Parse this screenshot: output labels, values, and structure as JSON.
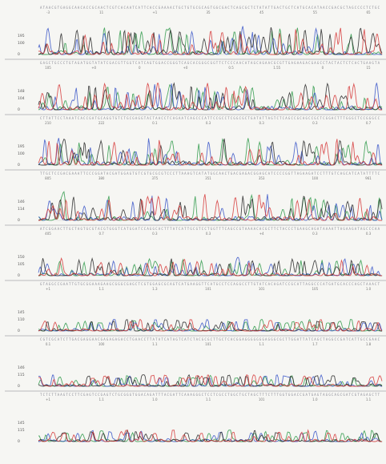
{
  "colors": {
    "background": "#f6f6f3",
    "trace_A": "#2f9a4a",
    "trace_C": "#3a56c8",
    "trace_G": "#2a2a2a",
    "trace_T": "#d63a3a",
    "sequence_text": "#8a8a95",
    "divider": "#b9b9bd"
  },
  "chart_data": {
    "type": "line",
    "title": "",
    "xlabel": "",
    "ylabel": "",
    "grid": false,
    "legend": "none",
    "panels": [
      {
        "row": 1,
        "y_ticks": [
          "195",
          "100",
          "0"
        ],
        "x_ticks": [
          "-3",
          "11",
          "+1",
          "35",
          "45",
          "55",
          "65"
        ]
      },
      {
        "row": 2,
        "y_ticks": [
          "148",
          "104",
          "0"
        ],
        "x_ticks": [
          "105",
          "+0",
          "0",
          "+0",
          "0.5",
          "1.55",
          "0",
          "15"
        ]
      },
      {
        "row": 3,
        "y_ticks": [
          "195",
          "100",
          "0"
        ],
        "x_ticks": [
          "210",
          "222",
          "0.1",
          "0.3",
          "0.3",
          "0.3",
          "0.7"
        ]
      },
      {
        "row": 4,
        "y_ticks": [
          "146",
          "114",
          "0"
        ],
        "x_ticks": [
          "805",
          "380",
          "375",
          "351",
          "353",
          "100",
          "961"
        ]
      },
      {
        "row": 5,
        "y_ticks": [
          "150",
          "105",
          "0"
        ],
        "x_ticks": [
          "405",
          "0.7",
          "0.3",
          "0.3",
          "+4",
          "0.3",
          "0.3"
        ]
      },
      {
        "row": 6,
        "y_ticks": [
          "145",
          "110",
          "0"
        ],
        "x_ticks": [
          "+1",
          "1.1",
          "1.3",
          "101",
          "101",
          "105",
          "1.0"
        ]
      },
      {
        "row": 7,
        "y_ticks": [
          "146",
          "115",
          "0"
        ],
        "x_ticks": [
          "0.1",
          "100",
          "1.1",
          "101",
          "1.1",
          "1.7",
          "1.8"
        ]
      },
      {
        "row": 8,
        "y_ticks": [
          "145",
          "115",
          "0"
        ],
        "x_ticks": [
          "+1",
          "1.1",
          "1.0",
          "1.1",
          "101",
          "1.0",
          "1.1"
        ]
      }
    ],
    "series": [
      {
        "base": "A",
        "color": "#2f9a4a"
      },
      {
        "base": "C",
        "color": "#3a56c8"
      },
      {
        "base": "G",
        "color": "#2a2a2a"
      },
      {
        "base": "T",
        "color": "#d63a3a"
      }
    ]
  }
}
